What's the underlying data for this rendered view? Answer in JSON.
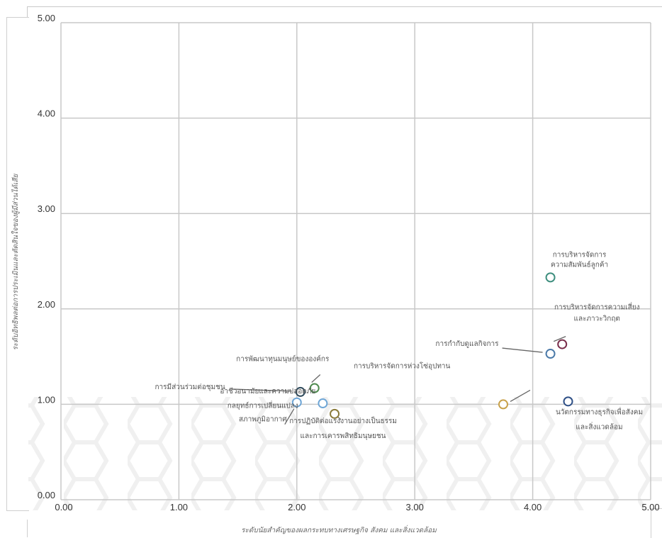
{
  "chart_data": {
    "type": "scatter",
    "xlabel": "ระดับนัยสำคัญของผลกระทบทางเศรษฐกิจ สังคม และสิ่งแวดล้อม",
    "ylabel": "ระดับอิทธิพลต่อการประเมินและตัดสินใจของผู้มีส่วนได้เสีย",
    "xlim": [
      0,
      5
    ],
    "ylim": [
      0,
      5
    ],
    "x_ticks": [
      "0.00",
      "1.00",
      "2.00",
      "3.00",
      "4.00",
      "5.00"
    ],
    "y_ticks": [
      "0.00",
      "1.00",
      "2.00",
      "3.00",
      "4.00",
      "5.00"
    ],
    "grid": true,
    "points": [
      {
        "label": [
          "การบริหารจัดการ",
          "ความสัมพันธ์ลูกค้า"
        ],
        "x": 4.15,
        "y": 2.33,
        "color": "#3f8f7f"
      },
      {
        "label": [
          "การบริหารจัดการความเสี่ยง",
          "และภาวะวิกฤต"
        ],
        "x": 4.25,
        "y": 1.63,
        "color": "#7a2f4c"
      },
      {
        "label": [
          "การกำกับดูแลกิจการ"
        ],
        "x": 4.15,
        "y": 1.53,
        "color": "#4a79a8"
      },
      {
        "label": [
          "นวัตกรรมทางธุรกิจเพื่อสังคม",
          "และสิ่งแวดล้อม"
        ],
        "x": 4.3,
        "y": 1.03,
        "color": "#2e4f86"
      },
      {
        "label": [
          "การบริหารจัดการห่วงโซ่อุปทาน"
        ],
        "x": 3.75,
        "y": 1.0,
        "color": "#c8a14a"
      },
      {
        "label": [
          "อาชีวอนามัยและความปลอดภัย"
        ],
        "x": 2.22,
        "y": 1.01,
        "color": "#6fa6d6"
      },
      {
        "label": [
          "การพัฒนาทุนมนุษย์ขององค์กร"
        ],
        "x": 2.15,
        "y": 1.17,
        "color": "#4e8a4e"
      },
      {
        "label": [
          "การมีส่วนร่วมต่อชุมชน"
        ],
        "x": 2.03,
        "y": 1.13,
        "color": "#2f4a5c"
      },
      {
        "label": [
          "กลยุทธ์การเปลี่ยนแปลง",
          "สภาพภูมิอากาศ"
        ],
        "x": 2.0,
        "y": 1.02,
        "color": "#6fa6d6"
      },
      {
        "label": [
          "การปฏิบัติต่อแรงงานอย่างเป็นธรรม",
          "และการเคารพสิทธิมนุษยชน"
        ],
        "x": 2.32,
        "y": 0.9,
        "color": "#8a7a3a"
      }
    ]
  }
}
